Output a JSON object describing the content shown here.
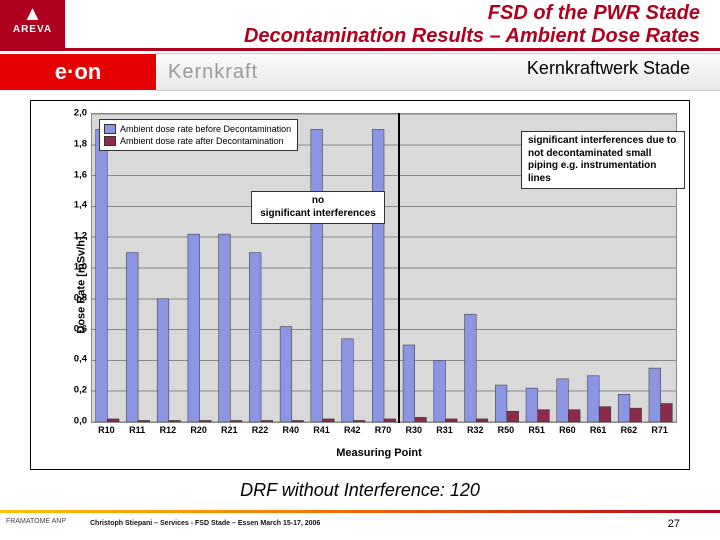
{
  "branding": {
    "areva": "AREVA",
    "eon": "e·on",
    "kernkraft": "Kernkraft",
    "stade": "Kernkraftwerk Stade"
  },
  "title_line1": "FSD of the PWR Stade",
  "title_line2": "Decontamination Results – Ambient Dose Rates",
  "chart": {
    "type": "bar",
    "y_axis_title": "Dose Rate [mSv/h]",
    "x_axis_title": "Measuring Point",
    "ylim": [
      0,
      2.0
    ],
    "ytick_step": 0.2,
    "y_ticks": [
      "0,0",
      "0,2",
      "0,4",
      "0,6",
      "0,8",
      "1,0",
      "1,2",
      "1,4",
      "1,6",
      "1,8",
      "2,0"
    ],
    "background_color": "#d9d9d9",
    "grid_color": "#888888",
    "series": [
      {
        "name": "Ambient dose rate before Decontamination",
        "color": "#8b95e2",
        "key": "before"
      },
      {
        "name": "Ambient dose rate after Decontamination",
        "color": "#8b2a4a",
        "key": "after"
      }
    ],
    "categories": [
      "R10",
      "R11",
      "R12",
      "R20",
      "R21",
      "R22",
      "R40",
      "R41",
      "R42",
      "R70",
      "R30",
      "R31",
      "R32",
      "R50",
      "R51",
      "R60",
      "R61",
      "R62",
      "R71"
    ],
    "before": [
      1.9,
      1.1,
      0.8,
      1.22,
      1.22,
      1.1,
      0.62,
      1.9,
      0.54,
      1.9,
      0.5,
      0.4,
      0.7,
      0.24,
      0.22,
      0.28,
      0.3,
      0.18,
      0.35
    ],
    "after": [
      0.02,
      0.01,
      0.01,
      0.01,
      0.01,
      0.01,
      0.01,
      0.02,
      0.01,
      0.02,
      0.03,
      0.02,
      0.02,
      0.07,
      0.08,
      0.08,
      0.1,
      0.09,
      0.12
    ],
    "divider_after_index": 9,
    "annotation_left": "no\nsignificant interferences",
    "annotation_right": "significant interferences due to not decontaminated small piping e.g. instrumentation lines",
    "title_fontsize": 12,
    "label_fontsize": 11,
    "tick_fontsize": 9,
    "bar_group_width": 0.76
  },
  "drf_line": "DRF without Interference: 120",
  "footer": {
    "left": "FRAMATOME ANP",
    "mid": "Christoph Stiepani – Services - FSD Stade – Essen March 15-17, 2006",
    "page": "27"
  }
}
